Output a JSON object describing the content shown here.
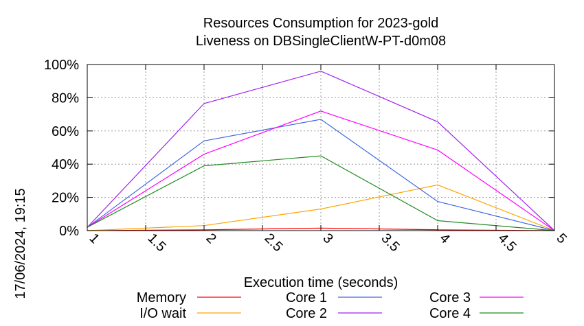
{
  "chart_data": {
    "type": "line",
    "title": "Resources Consumption for 2023-gold",
    "subtitle": "Liveness on DBSingleClientW-PT-d0m08",
    "xlabel": "Execution time (seconds)",
    "ylabel": "",
    "timestamp": "17/06/2024, 19:15",
    "x": [
      1,
      2,
      3,
      4,
      5
    ],
    "xlim": [
      1,
      5
    ],
    "ylim": [
      0,
      100
    ],
    "xticks": [
      "1",
      "1.5",
      "2",
      "2.5",
      "3",
      "3.5",
      "4",
      "4.5",
      "5"
    ],
    "yticks": [
      "0%",
      "20%",
      "40%",
      "60%",
      "80%",
      "100%"
    ],
    "grid": true,
    "legend_position": "bottom",
    "series": [
      {
        "name": "Memory",
        "color": "#ff0000",
        "values": [
          0,
          0.5,
          1.5,
          0.5,
          0
        ]
      },
      {
        "name": "I/O wait",
        "color": "#ffa500",
        "values": [
          0,
          3,
          13,
          27.5,
          0
        ]
      },
      {
        "name": "Core 1",
        "color": "#4169e1",
        "values": [
          2,
          54,
          67,
          17.5,
          0
        ]
      },
      {
        "name": "Core 2",
        "color": "#a020f0",
        "values": [
          2,
          76.5,
          96,
          65.5,
          0
        ]
      },
      {
        "name": "Core 3",
        "color": "#ff00ff",
        "values": [
          2,
          46,
          72,
          48.5,
          0
        ]
      },
      {
        "name": "Core 4",
        "color": "#228b22",
        "values": [
          2,
          39,
          45,
          6,
          0
        ]
      }
    ]
  }
}
